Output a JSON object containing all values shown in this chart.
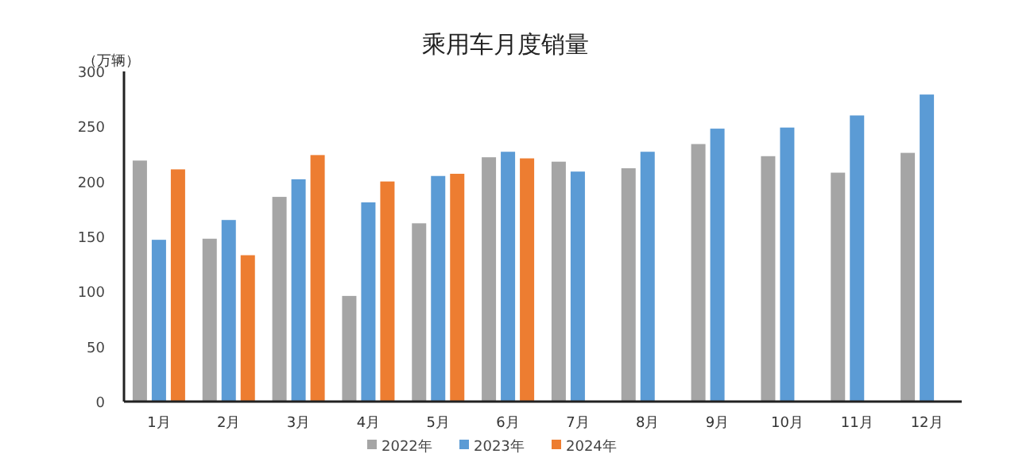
{
  "chart_data": {
    "type": "bar",
    "title": "乘用车月度销量",
    "ylabel": "（万辆）",
    "categories": [
      "1月",
      "2月",
      "3月",
      "4月",
      "5月",
      "6月",
      "7月",
      "8月",
      "9月",
      "10月",
      "11月",
      "12月"
    ],
    "series": [
      {
        "name": "2022年",
        "color": "#a5a5a5",
        "values": [
          219,
          148,
          186,
          96,
          162,
          222,
          218,
          212,
          234,
          223,
          208,
          226
        ]
      },
      {
        "name": "2023年",
        "color": "#5b9bd5",
        "values": [
          147,
          165,
          202,
          181,
          205,
          227,
          209,
          227,
          248,
          249,
          260,
          279
        ]
      },
      {
        "name": "2024年",
        "color": "#ed7d31",
        "values": [
          211,
          133,
          224,
          200,
          207,
          221,
          null,
          null,
          null,
          null,
          null,
          null
        ]
      }
    ],
    "ylim": [
      0,
      300
    ],
    "yticks": [
      0,
      50,
      100,
      150,
      200,
      250,
      300
    ],
    "legend": "bottom"
  }
}
